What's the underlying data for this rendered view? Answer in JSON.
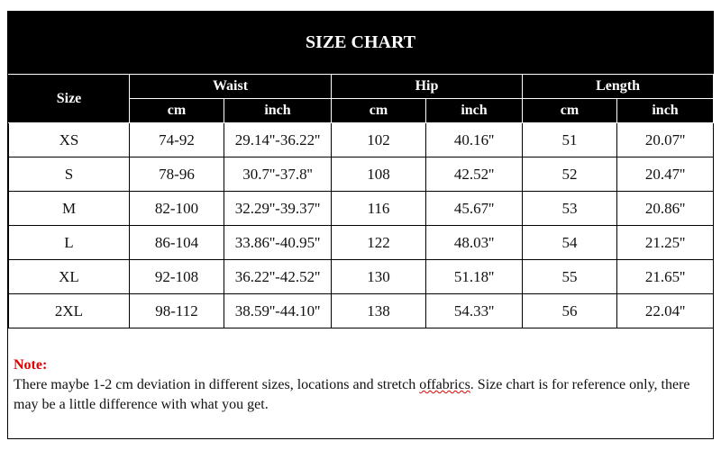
{
  "title": "SIZE CHART",
  "header": {
    "size": "Size",
    "waist": "Waist",
    "hip": "Hip",
    "length": "Length",
    "units": [
      "cm",
      "inch",
      "cm",
      "inch",
      "cm",
      "inch"
    ]
  },
  "rows": [
    {
      "size": "XS",
      "waist_cm": "74-92",
      "waist_inch": "29.14''-36.22''",
      "hip_cm": "102",
      "hip_inch": "40.16''",
      "length_cm": "51",
      "length_inch": "20.07''"
    },
    {
      "size": "S",
      "waist_cm": "78-96",
      "waist_inch": "30.7''-37.8''",
      "hip_cm": "108",
      "hip_inch": "42.52''",
      "length_cm": "52",
      "length_inch": "20.47''"
    },
    {
      "size": "M",
      "waist_cm": "82-100",
      "waist_inch": "32.29''-39.37''",
      "hip_cm": "116",
      "hip_inch": "45.67''",
      "length_cm": "53",
      "length_inch": "20.86''"
    },
    {
      "size": "L",
      "waist_cm": "86-104",
      "waist_inch": "33.86''-40.95''",
      "hip_cm": "122",
      "hip_inch": "48.03''",
      "length_cm": "54",
      "length_inch": "21.25''"
    },
    {
      "size": "XL",
      "waist_cm": "92-108",
      "waist_inch": "36.22''-42.52''",
      "hip_cm": "130",
      "hip_inch": "51.18''",
      "length_cm": "55",
      "length_inch": "21.65''"
    },
    {
      "size": "2XL",
      "waist_cm": "98-112",
      "waist_inch": "38.59''-44.10''",
      "hip_cm": "138",
      "hip_inch": "54.33''",
      "length_cm": "56",
      "length_inch": "22.04''"
    }
  ],
  "note": {
    "label": "Note:",
    "text_before": "There maybe 1-2 cm deviation in different sizes, locations and stretch ",
    "text_flagged": "offabrics",
    "text_after": ". Size chart is for reference only, there may be a little difference with what you get."
  },
  "colors": {
    "header_bg": "#000000",
    "note_label": "#e00000"
  }
}
